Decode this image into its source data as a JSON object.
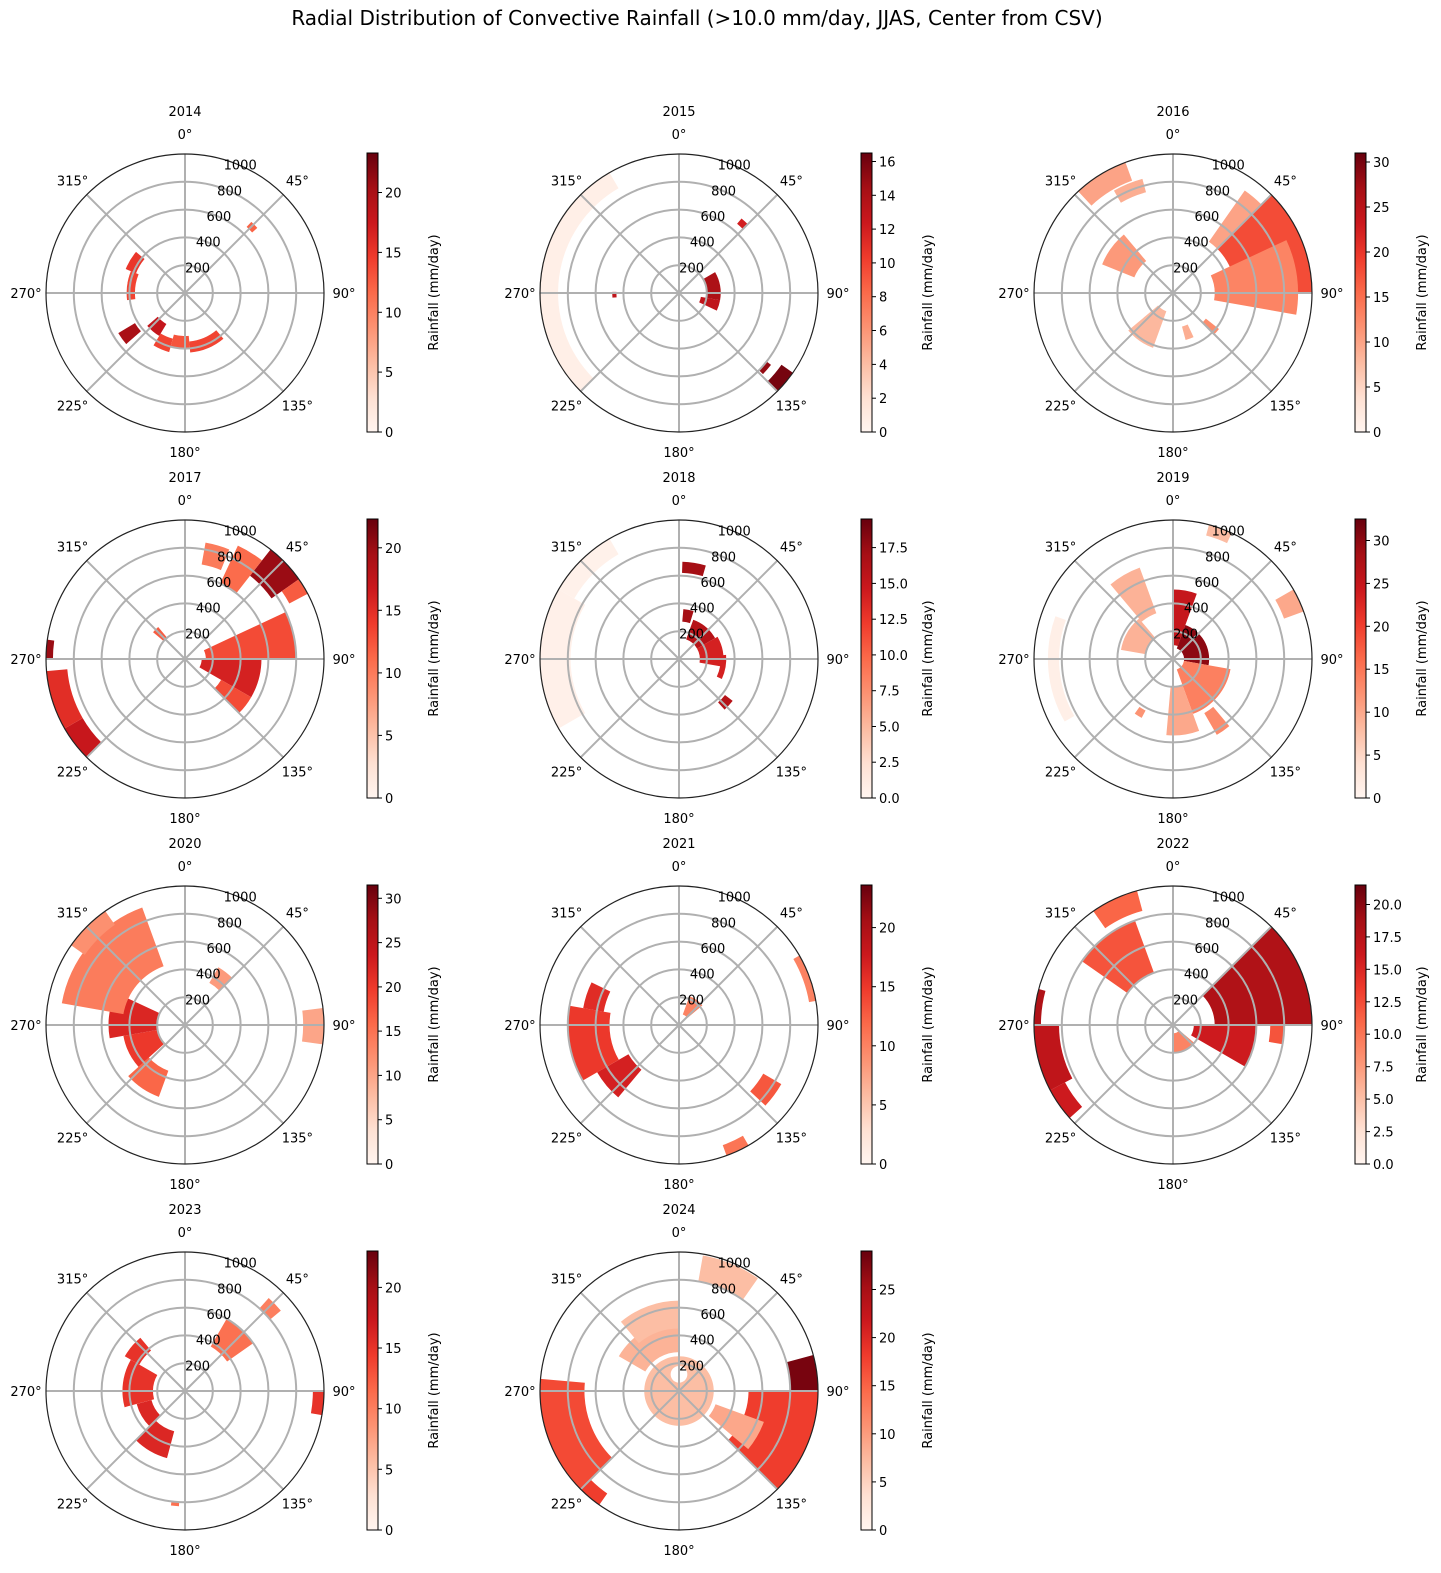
{
  "title": "Radial Distribution of Convective Rainfall (>10.0 mm/day, JJAS, Center from CSV)",
  "colormap": "Reds",
  "colormap_stops": [
    "#fff5f0",
    "#fee0d2",
    "#fcbba1",
    "#fc9272",
    "#fb6a4a",
    "#ef3b2c",
    "#cb181d",
    "#a50f15",
    "#67000d"
  ],
  "angle_labels": [
    "0°",
    "45°",
    "90°",
    "135°",
    "180°",
    "225°",
    "270°",
    "315°"
  ],
  "radial_ticks": [
    "200",
    "400",
    "600",
    "800",
    "1000"
  ],
  "colorbar_label": "Rainfall (mm/day)",
  "chart_data": [
    {
      "type": "polar-heatmap",
      "year": "2014",
      "rmax": 1000,
      "cbar_max": 23.3,
      "cbar_ticks": [
        "0",
        "5",
        "10",
        "15",
        "20"
      ],
      "sectors": [
        [
          229,
          239,
          420,
          560,
          20
        ],
        [
          211,
          229,
          260,
          360,
          18
        ],
        [
          195,
          211,
          340,
          440,
          14
        ],
        [
          175,
          195,
          310,
          400,
          13
        ],
        [
          140,
          175,
          350,
          430,
          14
        ],
        [
          292,
          310,
          380,
          460,
          15
        ],
        [
          263,
          292,
          360,
          420,
          14
        ],
        [
          43,
          48,
          650,
          700,
          12
        ]
      ]
    },
    {
      "type": "polar-heatmap",
      "year": "2015",
      "rmax": 1000,
      "cbar_max": 16.5,
      "cbar_ticks": [
        "0",
        "2",
        "4",
        "6",
        "8",
        "10",
        "12",
        "14",
        "16"
      ],
      "sectors": [
        [
          225,
          330,
          870,
          1000,
          0.6
        ],
        [
          60,
          100,
          200,
          300,
          14
        ],
        [
          100,
          115,
          160,
          300,
          13
        ],
        [
          125,
          135,
          900,
          1000,
          16
        ],
        [
          128,
          134,
          800,
          840,
          15
        ],
        [
          40,
          45,
          650,
          700,
          12
        ],
        [
          266,
          271,
          450,
          480,
          13
        ]
      ]
    },
    {
      "type": "polar-heatmap",
      "year": "2016",
      "rmax": 1000,
      "cbar_max": 31,
      "cbar_ticks": [
        "0",
        "5",
        "10",
        "15",
        "20",
        "25",
        "30"
      ],
      "sectors": [
        [
          45,
          67,
          720,
          1000,
          30
        ],
        [
          45,
          90,
          450,
          1000,
          18
        ],
        [
          65,
          100,
          300,
          900,
          13
        ],
        [
          35,
          45,
          450,
          900,
          10
        ],
        [
          317,
          340,
          860,
          1000,
          10
        ],
        [
          330,
          345,
          750,
          850,
          9
        ],
        [
          292,
          320,
          300,
          550,
          11
        ],
        [
          200,
          230,
          140,
          420,
          8
        ],
        [
          155,
          165,
          250,
          350,
          9
        ],
        [
          128,
          136,
          300,
          420,
          12
        ]
      ]
    },
    {
      "type": "polar-heatmap",
      "year": "2017",
      "rmax": 1000,
      "cbar_max": 22.3,
      "cbar_ticks": [
        "0",
        "5",
        "10",
        "15",
        "20"
      ],
      "sectors": [
        [
          38,
          55,
          760,
          1000,
          20
        ],
        [
          25,
          38,
          600,
          900,
          11
        ],
        [
          10,
          22,
          690,
          850,
          10
        ],
        [
          55,
          62,
          850,
          1000,
          12
        ],
        [
          65,
          90,
          150,
          800,
          13
        ],
        [
          90,
          120,
          120,
          550,
          16
        ],
        [
          120,
          135,
          300,
          550,
          13
        ],
        [
          225,
          240,
          850,
          1000,
          17
        ],
        [
          240,
          265,
          850,
          1000,
          15
        ],
        [
          270,
          278,
          950,
          1000,
          20
        ],
        [
          310,
          320,
          200,
          300,
          12
        ]
      ]
    },
    {
      "type": "polar-heatmap",
      "year": "2018",
      "rmax": 1000,
      "cbar_max": 19.5,
      "cbar_ticks": [
        "0.0",
        "2.5",
        "5.0",
        "7.5",
        "10.0",
        "12.5",
        "15.0",
        "17.5"
      ],
      "sectors": [
        [
          240,
          300,
          780,
          1000,
          0.6
        ],
        [
          300,
          330,
          870,
          1000,
          0.5
        ],
        [
          5,
          17,
          270,
          360,
          17
        ],
        [
          20,
          60,
          150,
          300,
          16
        ],
        [
          60,
          100,
          150,
          320,
          14
        ],
        [
          85,
          115,
          300,
          340,
          14
        ],
        [
          128,
          138,
          420,
          490,
          16
        ],
        [
          2,
          16,
          620,
          700,
          17
        ]
      ]
    },
    {
      "type": "polar-heatmap",
      "year": "2019",
      "rmax": 1000,
      "cbar_max": 32.5,
      "cbar_ticks": [
        "0",
        "5",
        "10",
        "15",
        "20",
        "25",
        "30"
      ],
      "sectors": [
        [
          0,
          20,
          100,
          500,
          25
        ],
        [
          20,
          100,
          80,
          260,
          30
        ],
        [
          100,
          160,
          80,
          420,
          14
        ],
        [
          160,
          185,
          200,
          550,
          10
        ],
        [
          140,
          150,
          450,
          630,
          13
        ],
        [
          208,
          215,
          420,
          480,
          12
        ],
        [
          280,
          320,
          200,
          380,
          9
        ],
        [
          320,
          340,
          350,
          700,
          9
        ],
        [
          60,
          70,
          850,
          1000,
          10
        ],
        [
          15,
          25,
          920,
          1000,
          8
        ],
        [
          240,
          290,
          820,
          900,
          1.2
        ]
      ]
    },
    {
      "type": "polar-heatmap",
      "year": "2020",
      "rmax": 1000,
      "cbar_max": 31.5,
      "cbar_ticks": [
        "0",
        "5",
        "10",
        "15",
        "20",
        "25",
        "30"
      ],
      "sectors": [
        [
          200,
          228,
          350,
          550,
          16
        ],
        [
          228,
          260,
          200,
          450,
          20
        ],
        [
          260,
          295,
          200,
          550,
          22
        ],
        [
          280,
          340,
          450,
          900,
          14
        ],
        [
          305,
          325,
          880,
          1000,
          12
        ],
        [
          30,
          45,
          350,
          480,
          11
        ],
        [
          83,
          98,
          850,
          1000,
          10
        ]
      ]
    },
    {
      "type": "polar-heatmap",
      "year": "2021",
      "rmax": 1000,
      "cbar_max": 23.6,
      "cbar_ticks": [
        "0",
        "5",
        "10",
        "15",
        "20"
      ],
      "sectors": [
        [
          220,
          240,
          420,
          680,
          17
        ],
        [
          240,
          280,
          500,
          800,
          15
        ],
        [
          280,
          296,
          550,
          700,
          16
        ],
        [
          20,
          50,
          80,
          220,
          10
        ],
        [
          120,
          133,
          700,
          850,
          13
        ],
        [
          150,
          160,
          920,
          1000,
          11
        ],
        [
          60,
          80,
          950,
          1000,
          10
        ]
      ]
    },
    {
      "type": "polar-heatmap",
      "year": "2022",
      "rmax": 1000,
      "cbar_max": 21.5,
      "cbar_ticks": [
        "0.0",
        "2.5",
        "5.0",
        "7.5",
        "10.0",
        "12.5",
        "15.0",
        "17.5",
        "20.0"
      ],
      "sectors": [
        [
          45,
          90,
          300,
          1000,
          18
        ],
        [
          90,
          120,
          150,
          600,
          16
        ],
        [
          90,
          100,
          700,
          800,
          12
        ],
        [
          228,
          242,
          880,
          1000,
          16
        ],
        [
          242,
          270,
          820,
          1000,
          17
        ],
        [
          270,
          285,
          950,
          1000,
          18
        ],
        [
          305,
          340,
          400,
          800,
          12
        ],
        [
          325,
          345,
          850,
          1000,
          11
        ],
        [
          130,
          180,
          60,
          200,
          9
        ]
      ]
    },
    {
      "type": "polar-heatmap",
      "year": "2023",
      "rmax": 1000,
      "cbar_max": 23,
      "cbar_ticks": [
        "0",
        "5",
        "10",
        "15",
        "20"
      ],
      "sectors": [
        [
          195,
          225,
          300,
          500,
          16
        ],
        [
          225,
          255,
          250,
          360,
          16
        ],
        [
          255,
          300,
          230,
          450,
          15
        ],
        [
          300,
          320,
          380,
          500,
          15
        ],
        [
          30,
          55,
          370,
          600,
          11
        ],
        [
          42,
          50,
          800,
          900,
          10
        ],
        [
          90,
          100,
          920,
          1000,
          15
        ],
        [
          183,
          187,
          800,
          830,
          11
        ]
      ]
    },
    {
      "type": "polar-heatmap",
      "year": "2024",
      "rmax": 1000,
      "cbar_max": 29,
      "cbar_ticks": [
        "0",
        "5",
        "10",
        "15",
        "20",
        "25"
      ],
      "sectors": [
        [
          75,
          90,
          800,
          1000,
          28
        ],
        [
          90,
          135,
          500,
          1000,
          18
        ],
        [
          110,
          130,
          280,
          650,
          9
        ],
        [
          225,
          275,
          680,
          1000,
          17
        ],
        [
          215,
          225,
          900,
          1000,
          18
        ],
        [
          0,
          360,
          60,
          250,
          7
        ],
        [
          300,
          360,
          280,
          500,
          8
        ],
        [
          320,
          360,
          450,
          650,
          7
        ],
        [
          10,
          35,
          800,
          990,
          7
        ]
      ]
    }
  ]
}
